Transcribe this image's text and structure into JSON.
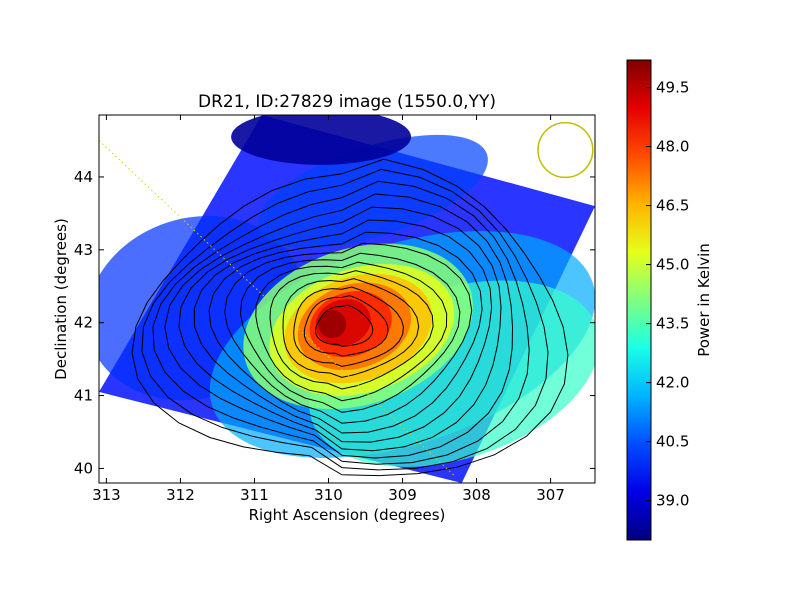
{
  "chart_data": {
    "type": "heatmap",
    "title": "DR21, ID:27829 image (1550.0,YY)",
    "xlabel": "Right Ascension (degrees)",
    "ylabel": "Declination (degrees)",
    "xlim": [
      313.1,
      306.4
    ],
    "ylim": [
      39.8,
      44.85
    ],
    "x_ticks": [
      "313",
      "312",
      "311",
      "310",
      "309",
      "308",
      "307"
    ],
    "x_tick_values": [
      313,
      312,
      311,
      310,
      309,
      308,
      307
    ],
    "y_ticks": [
      "40",
      "41",
      "42",
      "43",
      "44"
    ],
    "y_tick_values": [
      40,
      41,
      42,
      43,
      44
    ],
    "colorbar": {
      "label": "Power in Kelvin",
      "range": [
        38.0,
        50.2
      ],
      "ticks": [
        "39.0",
        "40.5",
        "42.0",
        "43.5",
        "45.0",
        "46.5",
        "48.0",
        "49.5"
      ],
      "tick_values": [
        39.0,
        40.5,
        42.0,
        43.5,
        45.0,
        46.5,
        48.0,
        49.5
      ]
    },
    "colormap": "jet",
    "peak": {
      "ra": 309.9,
      "dec": 42.0,
      "value": 50.0
    },
    "secondary_source": {
      "ra": 306.8,
      "dec": 42.6,
      "value": 41.5
    },
    "valid_region_corners": [
      {
        "ra": 310.9,
        "dec": 44.85
      },
      {
        "ra": 306.4,
        "dec": 43.6
      },
      {
        "ra": 308.2,
        "dec": 39.8
      },
      {
        "ra": 313.1,
        "dec": 41.05
      }
    ],
    "beam_circle": {
      "ra": 306.8,
      "dec": 44.37,
      "radius_deg": 0.37,
      "color": "#bfbf00"
    },
    "scan_line": {
      "from": {
        "ra": 313.1,
        "dec": 44.5
      },
      "to": {
        "ra": 308.3,
        "dec": 39.9
      },
      "color": "#d4d400"
    },
    "contour_color": "#000000"
  }
}
